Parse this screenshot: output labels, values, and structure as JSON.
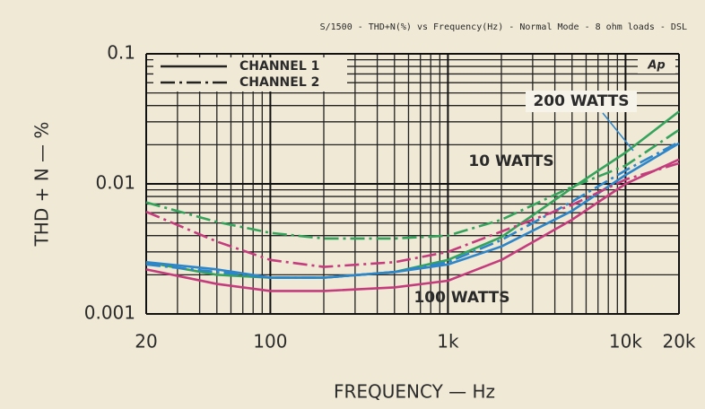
{
  "chart_data": {
    "type": "line",
    "header": "S/1500 - THD+N(%) vs Frequency(Hz) - Normal Mode - 8 ohm loads - DSL",
    "logo": "Ap",
    "y_label": "THD + N — %",
    "x_label": "FREQUENCY — Hz",
    "x_log": true,
    "y_log": true,
    "grid": true,
    "legend": {
      "position": "upper-left",
      "entries": [
        "CHANNEL 1",
        "CHANNEL 2"
      ],
      "styles": [
        "solid",
        "dashdot"
      ]
    },
    "x": [
      20,
      50,
      100,
      200,
      500,
      1000,
      2000,
      5000,
      10000,
      20000
    ],
    "series": [
      {
        "name": "10 WATTS",
        "color": "#35a35c",
        "channels": [
          {
            "values": [
              0.0025,
              0.002,
              0.0019,
              0.0019,
              0.0021,
              0.0026,
              0.0039,
              0.0093,
              0.0174,
              0.036
            ]
          },
          {
            "values": [
              0.0072,
              0.0051,
              0.0042,
              0.0038,
              0.0038,
              0.004,
              0.0053,
              0.0095,
              0.0138,
              0.026
            ]
          }
        ]
      },
      {
        "name": "200 WATTS",
        "color": "#2e86c8",
        "channels": [
          {
            "values": [
              0.0025,
              0.0022,
              0.0019,
              0.0019,
              0.0021,
              0.0024,
              0.0033,
              0.0062,
              0.0117,
              0.0205
            ]
          },
          {
            "values": [
              0.0024,
              0.0021,
              0.0019,
              0.0019,
              0.0021,
              0.0025,
              0.0037,
              0.0073,
              0.0127,
              0.021
            ]
          }
        ]
      },
      {
        "name": "100 WATTS",
        "color": "#c43c7c",
        "channels": [
          {
            "values": [
              0.0022,
              0.0017,
              0.0015,
              0.0015,
              0.0016,
              0.0018,
              0.0026,
              0.0053,
              0.01,
              0.0154
            ]
          },
          {
            "values": [
              0.0061,
              0.0036,
              0.0026,
              0.0023,
              0.0025,
              0.003,
              0.0043,
              0.0069,
              0.0108,
              0.0144
            ]
          }
        ]
      }
    ],
    "xlim": [
      20,
      20000
    ],
    "ylim": [
      0.001,
      0.1
    ],
    "xticks": [
      20,
      100,
      {
        "value": 1000,
        "label": "1k"
      },
      {
        "value": 10000,
        "label": "10k"
      },
      {
        "value": 20000,
        "label": "20k"
      }
    ],
    "yticks": [
      0.001,
      0.01,
      0.1
    ]
  }
}
